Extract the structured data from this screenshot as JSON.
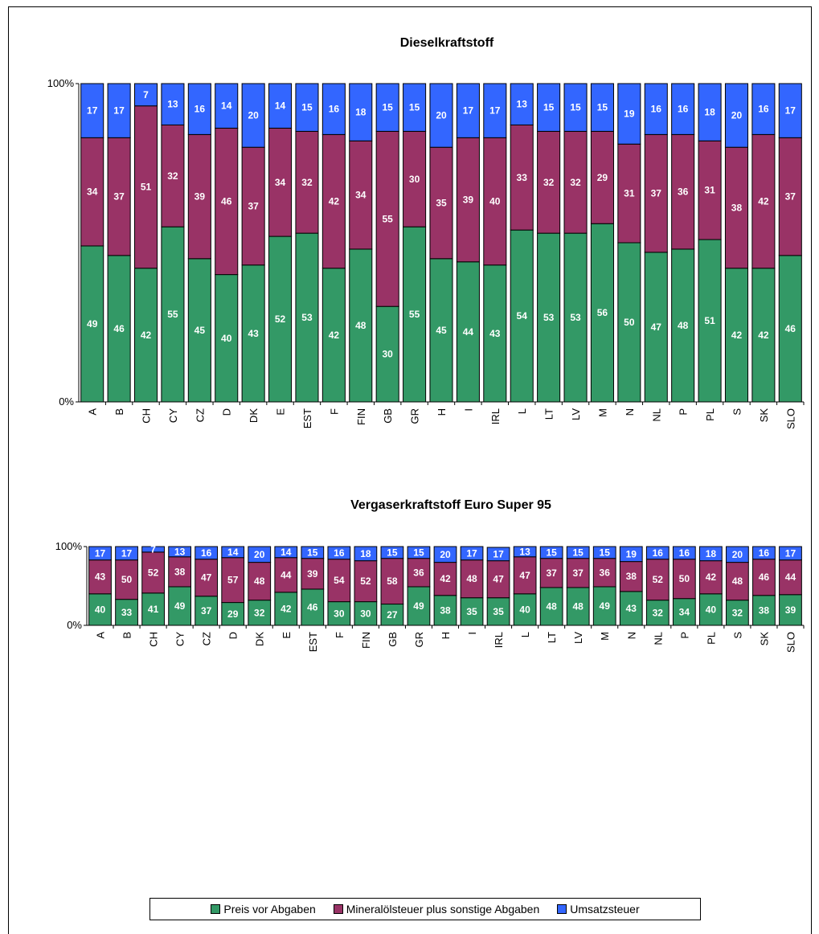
{
  "colors": {
    "preis": "#339966",
    "mineral": "#993366",
    "umsatz": "#3366ff"
  },
  "legend": {
    "preis": "Preis vor Abgaben",
    "mineral": "Mineralölsteuer plus sonstige Abgaben",
    "umsatz": "Umsatzsteuer"
  },
  "chart_data": [
    {
      "type": "bar",
      "stacked": true,
      "title": "Dieselkraftstoff",
      "ytick_labels": [
        "0%",
        "100%"
      ],
      "ylim": [
        0,
        100
      ],
      "categories": [
        "A",
        "B",
        "CH",
        "CY",
        "CZ",
        "D",
        "DK",
        "E",
        "EST",
        "F",
        "FIN",
        "GB",
        "GR",
        "H",
        "I",
        "IRL",
        "L",
        "LT",
        "LV",
        "M",
        "N",
        "NL",
        "P",
        "PL",
        "S",
        "SK",
        "SLO"
      ],
      "series": [
        {
          "name": "Preis vor Abgaben",
          "values": [
            49,
            46,
            42,
            55,
            45,
            40,
            43,
            52,
            53,
            42,
            48,
            30,
            55,
            45,
            44,
            43,
            54,
            53,
            53,
            56,
            50,
            47,
            48,
            51,
            42,
            42,
            46
          ]
        },
        {
          "name": "Mineralölsteuer plus sonstige Abgaben",
          "values": [
            34,
            37,
            51,
            32,
            39,
            46,
            37,
            34,
            32,
            42,
            34,
            55,
            30,
            35,
            39,
            40,
            33,
            32,
            32,
            29,
            31,
            37,
            36,
            31,
            38,
            42,
            37
          ]
        },
        {
          "name": "Umsatzsteuer",
          "values": [
            17,
            17,
            7,
            13,
            16,
            14,
            20,
            14,
            15,
            16,
            18,
            15,
            15,
            20,
            17,
            17,
            13,
            15,
            15,
            15,
            19,
            16,
            16,
            18,
            20,
            16,
            17
          ]
        }
      ]
    },
    {
      "type": "bar",
      "stacked": true,
      "title": "Vergaserkraftstoff Euro Super 95",
      "ytick_labels": [
        "0%",
        "100%"
      ],
      "ylim": [
        0,
        100
      ],
      "categories": [
        "A",
        "B",
        "CH",
        "CY",
        "CZ",
        "D",
        "DK",
        "E",
        "EST",
        "F",
        "FIN",
        "GB",
        "GR",
        "H",
        "I",
        "IRL",
        "L",
        "LT",
        "LV",
        "M",
        "N",
        "NL",
        "P",
        "PL",
        "S",
        "SK",
        "SLO"
      ],
      "series": [
        {
          "name": "Preis vor Abgaben",
          "values": [
            40,
            33,
            41,
            49,
            37,
            29,
            32,
            42,
            46,
            30,
            30,
            27,
            49,
            38,
            35,
            35,
            40,
            48,
            48,
            49,
            43,
            32,
            34,
            40,
            32,
            38,
            39
          ]
        },
        {
          "name": "Mineralölsteuer plus sonstige Abgaben",
          "values": [
            43,
            50,
            52,
            38,
            47,
            57,
            48,
            44,
            39,
            54,
            52,
            58,
            36,
            42,
            48,
            47,
            47,
            37,
            37,
            36,
            38,
            52,
            50,
            42,
            48,
            46,
            44
          ]
        },
        {
          "name": "Umsatzsteuer",
          "values": [
            17,
            17,
            7,
            13,
            16,
            14,
            20,
            14,
            15,
            16,
            18,
            15,
            15,
            20,
            17,
            17,
            13,
            15,
            15,
            15,
            19,
            16,
            16,
            18,
            20,
            16,
            17
          ]
        }
      ]
    }
  ]
}
